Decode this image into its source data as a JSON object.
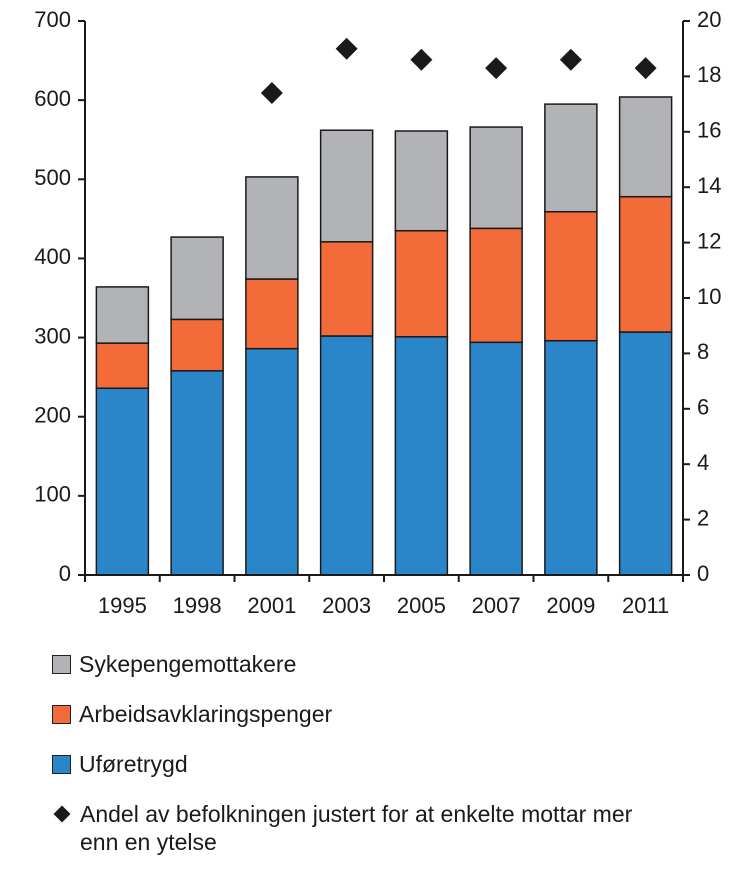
{
  "chart_data": {
    "type": "bar",
    "categories": [
      "1995",
      "1998",
      "2001",
      "2003",
      "2005",
      "2007",
      "2009",
      "2011"
    ],
    "series": [
      {
        "name": "Uføretrygd",
        "color": "#2a86c8",
        "values": [
          236,
          258,
          286,
          302,
          301,
          294,
          296,
          307
        ]
      },
      {
        "name": "Arbeidsavklaringspenger",
        "color": "#f26b38",
        "values": [
          57,
          65,
          88,
          119,
          134,
          144,
          163,
          171
        ]
      },
      {
        "name": "Sykepengemottakere",
        "color": "#b2b3b6",
        "values": [
          71,
          104,
          129,
          141,
          126,
          128,
          136,
          126
        ]
      },
      {
        "name": "Andel av befolkningen justert for at enkelte mottar mer enn en ytelse",
        "color": "#1a1a1a",
        "axis": "y2",
        "marker": "diamond",
        "values": [
          null,
          null,
          17.4,
          19.0,
          18.6,
          18.3,
          18.6,
          18.3
        ]
      }
    ],
    "stacked": true,
    "ylim": [
      0,
      700
    ],
    "yticks": [
      0,
      100,
      200,
      300,
      400,
      500,
      600,
      700
    ],
    "y2lim": [
      0,
      20
    ],
    "y2ticks": [
      0,
      2,
      4,
      6,
      8,
      10,
      12,
      14,
      16,
      18,
      20
    ]
  }
}
